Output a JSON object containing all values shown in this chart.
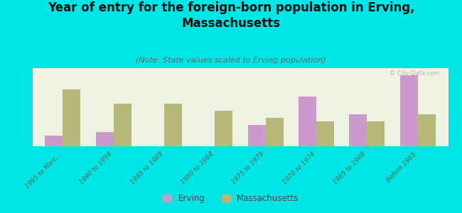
{
  "title": "Year of entry for the foreign-born population in Erving,\nMassachusetts",
  "subtitle": "(Note: State values scaled to Erving population)",
  "categories": [
    "1995 to Marc...",
    "1990 to 1994",
    "1985 to 1989",
    "1980 to 1984",
    "1975 to 1979",
    "1970 to 1974",
    "1965 to 1969",
    "Before 1965"
  ],
  "erving_values": [
    3,
    4,
    0,
    0,
    6,
    14,
    9,
    20
  ],
  "massachusetts_values": [
    16,
    12,
    12,
    10,
    8,
    7,
    7,
    9
  ],
  "erving_color": "#cc99cc",
  "massachusetts_color": "#b5b878",
  "background_color": "#00e5e5",
  "plot_bg": "#eef2e2",
  "title_fontsize": 12,
  "subtitle_fontsize": 8,
  "bar_width": 0.35,
  "ylim": [
    0,
    22
  ],
  "watermark": "© City-Data.com"
}
